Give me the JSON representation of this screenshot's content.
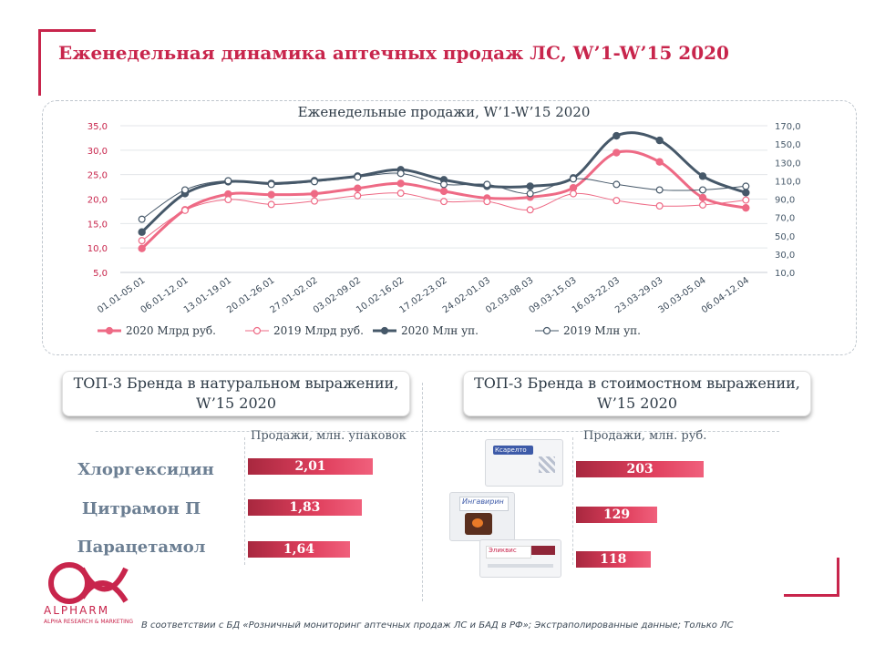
{
  "page": {
    "title": "Еженедельная динамика аптечных продаж ЛС, W’1-W’15 2020",
    "footnote": "В соответствии с БД «Розничный мониторинг аптечных продаж ЛС и БАД в РФ»; Экстраполированные данные; Только ЛС"
  },
  "logo": {
    "name": "ALPHARM",
    "sub": "ALPHA RESEARCH & MARKETING",
    "color": "#c8254c"
  },
  "chart_data": {
    "type": "line",
    "title": "Еженедельные продажи, W’1-W’15 2020",
    "categories": [
      "01.01-05.01",
      "06.01-12.01",
      "13.01-19.01",
      "20.01-26.01",
      "27.01-02.02",
      "03.02-09.02",
      "10.02-16.02",
      "17.02-23.02",
      "24.02-01.03",
      "02.03-08.03",
      "09.03-15.03",
      "16.03-22.03",
      "23.03-29.03",
      "30.03-05.04",
      "06.04-12.04"
    ],
    "y_left": {
      "min": 5,
      "max": 35,
      "ticks": [
        "35,0",
        "30,0",
        "25,0",
        "20,0",
        "15,0",
        "10,0",
        "5,0"
      ]
    },
    "y_right": {
      "min": 10,
      "max": 170,
      "ticks": [
        "170,0",
        "150,0",
        "130,0",
        "110,0",
        "90,0",
        "70,0",
        "50,0",
        "30,0",
        "10,0"
      ]
    },
    "series": [
      {
        "name": "2020 Млрд руб.",
        "axis": "left",
        "color": "#ee6a85",
        "marker": "filled",
        "width": 3,
        "values": [
          9.9,
          17.8,
          21.0,
          20.9,
          21.1,
          22.2,
          23.2,
          21.6,
          20.2,
          20.4,
          22.3,
          29.5,
          27.6,
          20.3,
          18.2
        ]
      },
      {
        "name": "2019 Млрд руб.",
        "axis": "left",
        "color": "#ee6a85",
        "marker": "open",
        "width": 1,
        "values": [
          11.5,
          17.7,
          19.9,
          18.9,
          19.6,
          20.7,
          21.2,
          19.5,
          19.5,
          17.8,
          21.1,
          19.7,
          18.6,
          18.8,
          19.8
        ]
      },
      {
        "name": "2020 Млн уп.",
        "axis": "right",
        "color": "#465869",
        "marker": "filled",
        "width": 3,
        "values": [
          54,
          96,
          109,
          107,
          110,
          115,
          122,
          111,
          104,
          104,
          113,
          159,
          154,
          115,
          97
        ]
      },
      {
        "name": "2019 Млн уп.",
        "axis": "right",
        "color": "#465869",
        "marker": "open",
        "width": 1,
        "values": [
          68,
          100,
          110,
          106,
          109,
          114,
          118,
          106,
          106,
          96,
          112,
          106,
          100,
          100,
          104
        ]
      }
    ]
  },
  "sections": {
    "natural": {
      "title": "ТОП-3 Бренда в натуральном выражении, W’15 2020",
      "units": "Продажи, млн. упаковок",
      "items": [
        {
          "brand": "Хлоргексидин",
          "value": 2.01,
          "label": "2,01"
        },
        {
          "brand": "Цитрамон П",
          "value": 1.83,
          "label": "1,83"
        },
        {
          "brand": "Парацетамол",
          "value": 1.64,
          "label": "1,64"
        }
      ]
    },
    "value": {
      "title": "ТОП-3 Бренда в стоимостном выражении, W’15 2020",
      "units": "Продажи, млн. руб.",
      "items": [
        {
          "pack_name": "Ксарелто",
          "value": 203,
          "label": "203"
        },
        {
          "pack_name": "Ингавирин",
          "value": 129,
          "label": "129"
        },
        {
          "pack_name": "Эликвис",
          "value": 118,
          "label": "118"
        }
      ]
    }
  }
}
